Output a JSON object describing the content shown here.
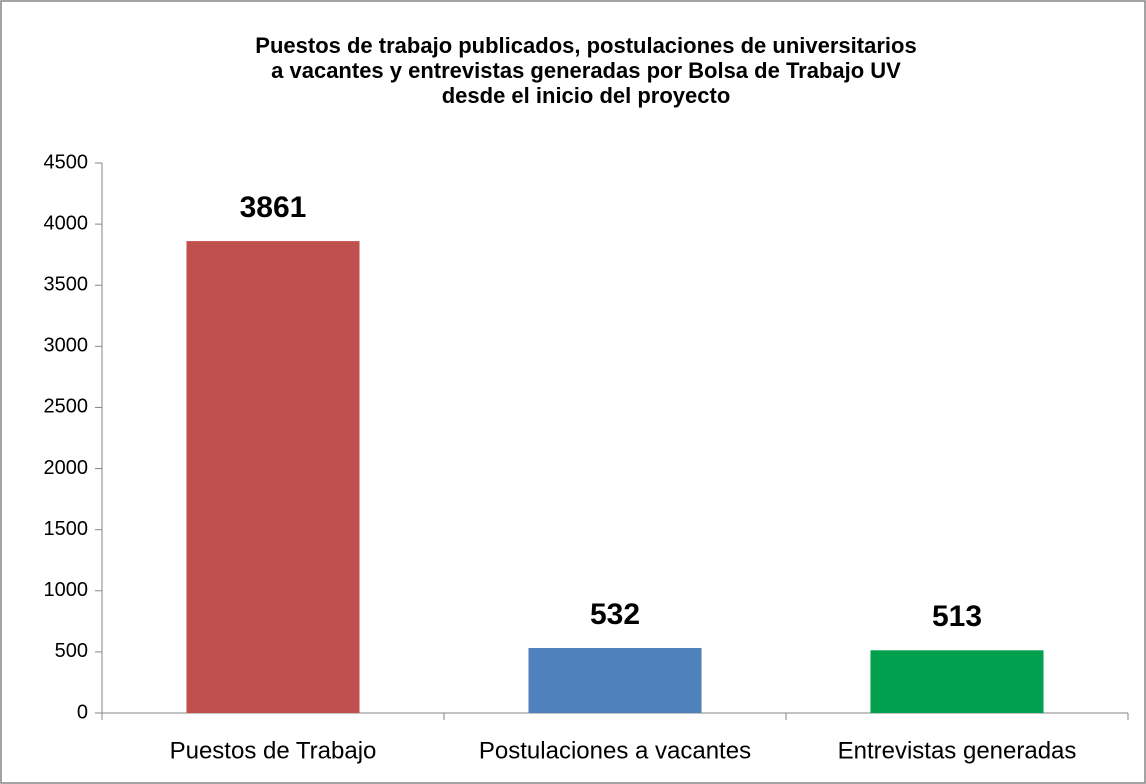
{
  "chart_data": {
    "type": "bar",
    "title": [
      "Puestos de trabajo publicados, postulaciones de universitarios",
      "a vacantes y entrevistas generadas por Bolsa de Trabajo UV",
      "desde el inicio del proyecto"
    ],
    "categories": [
      "Puestos de Trabajo",
      "Postulaciones a vacantes",
      "Entrevistas generadas"
    ],
    "values": [
      3861,
      532,
      513
    ],
    "colors": [
      "#c0504d",
      "#4f81bd",
      "#00a04f"
    ],
    "ylim": [
      0,
      4500
    ],
    "yticks": [
      0,
      500,
      1000,
      1500,
      2000,
      2500,
      3000,
      3500,
      4000,
      4500
    ],
    "grid": false
  }
}
